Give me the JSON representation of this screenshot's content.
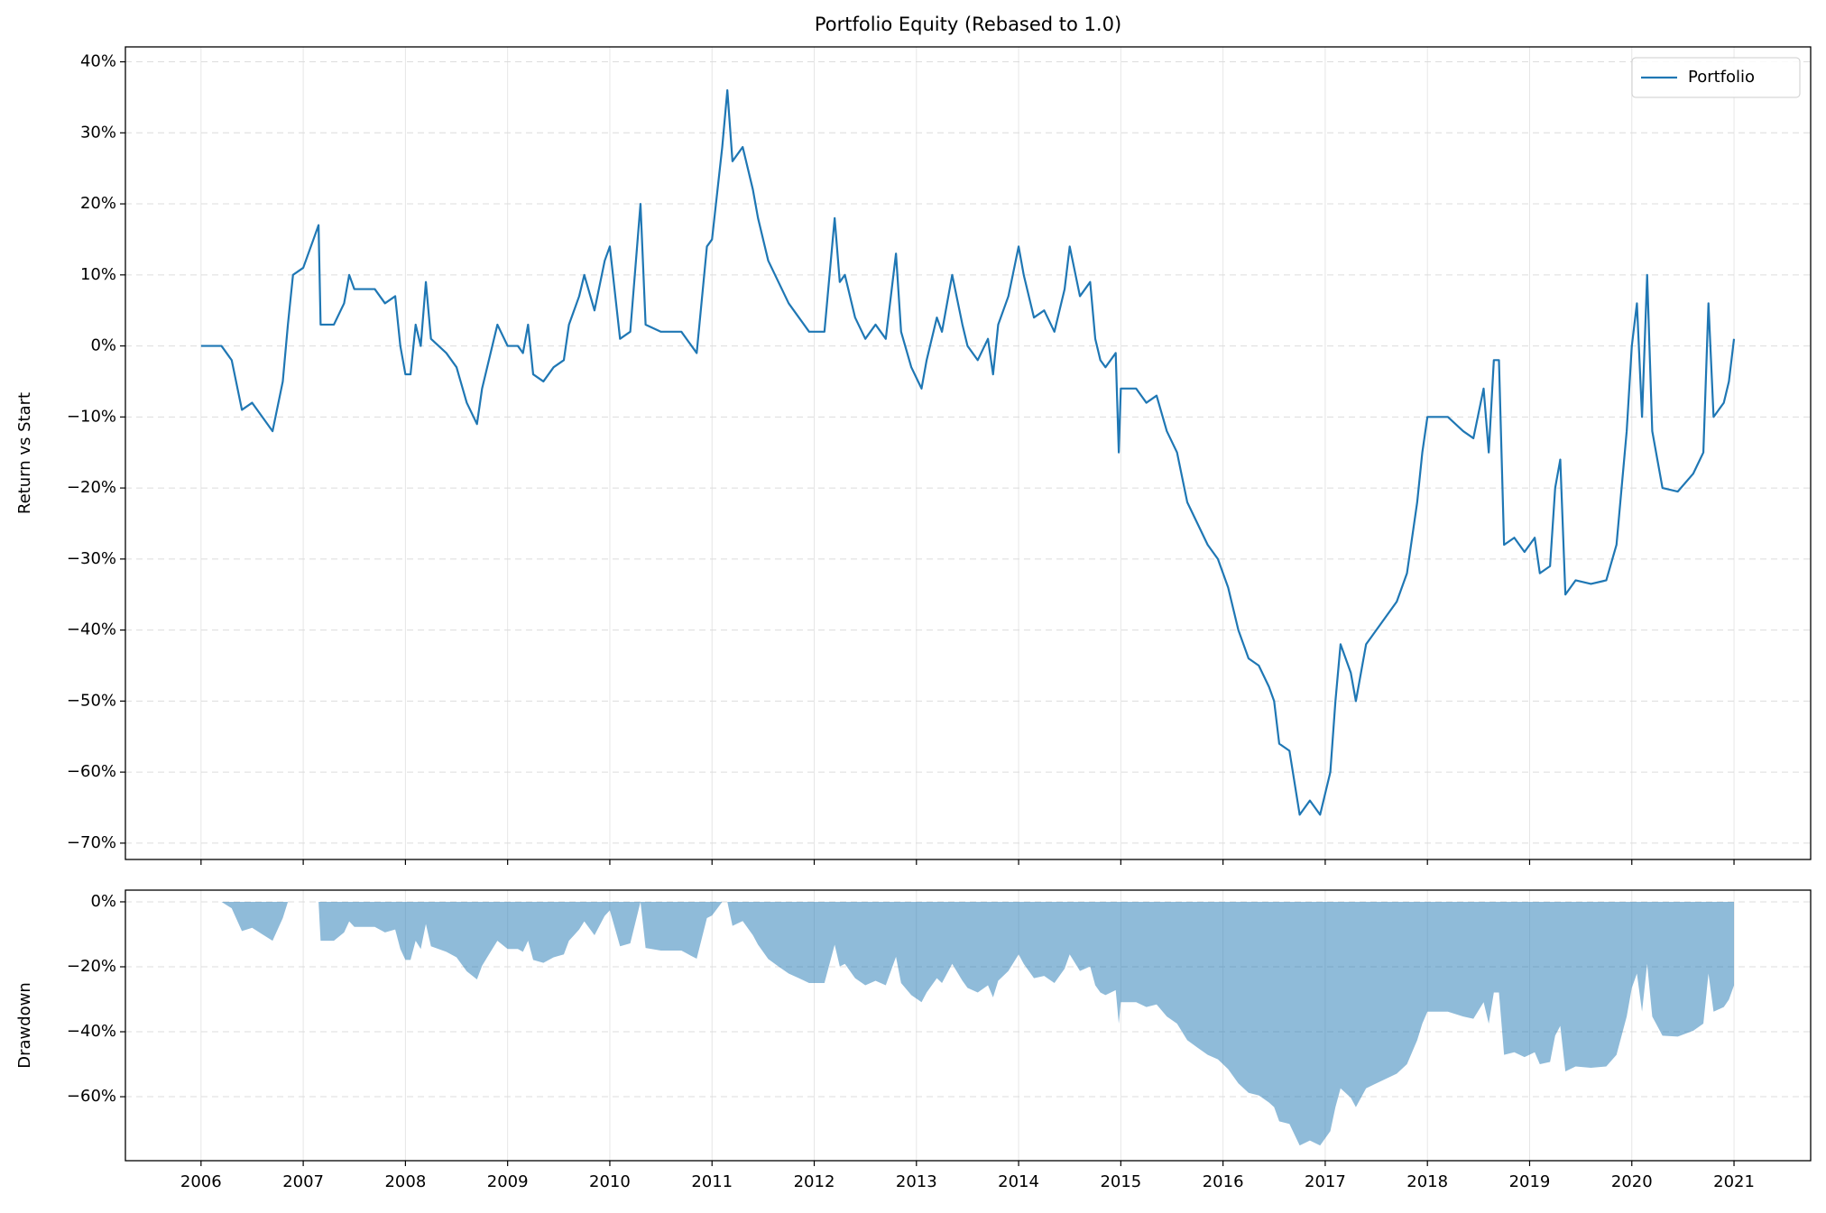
{
  "chart_data": [
    {
      "type": "line",
      "title": "Portfolio Equity (Rebased to 1.0)",
      "y_label": "Return vs Start",
      "x": [
        2006.0,
        2006.2,
        2006.3,
        2006.4,
        2006.5,
        2006.6,
        2006.7,
        2006.8,
        2006.85,
        2006.9,
        2007.0,
        2007.1,
        2007.15,
        2007.17,
        2007.3,
        2007.4,
        2007.45,
        2007.5,
        2007.6,
        2007.7,
        2007.8,
        2007.9,
        2007.95,
        2008.0,
        2008.05,
        2008.1,
        2008.15,
        2008.2,
        2008.25,
        2008.4,
        2008.5,
        2008.6,
        2008.7,
        2008.75,
        2008.8,
        2008.9,
        2009.0,
        2009.1,
        2009.15,
        2009.2,
        2009.25,
        2009.35,
        2009.45,
        2009.55,
        2009.6,
        2009.7,
        2009.75,
        2009.85,
        2009.95,
        2010.0,
        2010.1,
        2010.2,
        2010.3,
        2010.35,
        2010.5,
        2010.7,
        2010.8,
        2010.85,
        2010.95,
        2011.0,
        2011.1,
        2011.15,
        2011.2,
        2011.3,
        2011.4,
        2011.45,
        2011.55,
        2011.65,
        2011.75,
        2011.85,
        2011.95,
        2012.1,
        2012.2,
        2012.25,
        2012.3,
        2012.4,
        2012.5,
        2012.6,
        2012.7,
        2012.8,
        2012.85,
        2012.95,
        2013.05,
        2013.1,
        2013.2,
        2013.25,
        2013.35,
        2013.45,
        2013.5,
        2013.6,
        2013.7,
        2013.75,
        2013.8,
        2013.9,
        2014.0,
        2014.05,
        2014.15,
        2014.25,
        2014.35,
        2014.45,
        2014.5,
        2014.6,
        2014.7,
        2014.75,
        2014.8,
        2014.85,
        2014.95,
        2014.98,
        2015.0,
        2015.15,
        2015.25,
        2015.35,
        2015.45,
        2015.55,
        2015.65,
        2015.75,
        2015.85,
        2015.95,
        2016.05,
        2016.15,
        2016.25,
        2016.35,
        2016.45,
        2016.5,
        2016.55,
        2016.65,
        2016.75,
        2016.85,
        2016.95,
        2017.05,
        2017.1,
        2017.15,
        2017.25,
        2017.3,
        2017.4,
        2017.5,
        2017.6,
        2017.7,
        2017.8,
        2017.9,
        2017.95,
        2018.0,
        2018.2,
        2018.35,
        2018.45,
        2018.55,
        2018.6,
        2018.65,
        2018.7,
        2018.75,
        2018.85,
        2018.95,
        2019.05,
        2019.1,
        2019.2,
        2019.25,
        2019.3,
        2019.35,
        2019.45,
        2019.6,
        2019.75,
        2019.85,
        2019.95,
        2020.0,
        2020.05,
        2020.1,
        2020.15,
        2020.2,
        2020.3,
        2020.45,
        2020.6,
        2020.7,
        2020.75,
        2020.8,
        2020.9,
        2020.95,
        2021.0
      ],
      "series": [
        {
          "name": "Portfolio",
          "color": "#1f77b4",
          "values": [
            0,
            0,
            -2,
            -9,
            -8,
            -10,
            -12,
            -5,
            3,
            10,
            11,
            15,
            17,
            3,
            3,
            6,
            10,
            8,
            8,
            8,
            6,
            7,
            0,
            -4,
            -4,
            3,
            0,
            9,
            1,
            -1,
            -3,
            -8,
            -11,
            -6,
            -3,
            3,
            0,
            0,
            -1,
            3,
            -4,
            -5,
            -3,
            -2,
            3,
            7,
            10,
            5,
            12,
            14,
            1,
            2,
            20,
            3,
            2,
            2,
            0,
            -1,
            14,
            15,
            28,
            36,
            26,
            28,
            22,
            18,
            12,
            9,
            6,
            4,
            2,
            2,
            18,
            9,
            10,
            4,
            1,
            3,
            1,
            13,
            2,
            -3,
            -6,
            -2,
            4,
            2,
            10,
            3,
            0,
            -2,
            1,
            -4,
            3,
            7,
            14,
            10,
            4,
            5,
            2,
            8,
            14,
            7,
            9,
            1,
            -2,
            -3,
            -1,
            -15,
            -6,
            -6,
            -8,
            -7,
            -12,
            -15,
            -22,
            -25,
            -28,
            -30,
            -34,
            -40,
            -44,
            -45,
            -48,
            -50,
            -56,
            -57,
            -66,
            -64,
            -66,
            -60,
            -50,
            -42,
            -46,
            -50,
            -42,
            -40,
            -38,
            -36,
            -32,
            -22,
            -15,
            -10,
            -10,
            -12,
            -13,
            -6,
            -15,
            -2,
            -2,
            -28,
            -27,
            -29,
            -27,
            -32,
            -31,
            -20,
            -16,
            -35,
            -33,
            -33.5,
            -33,
            -28,
            -12,
            0,
            6,
            -10,
            10,
            -12,
            -20,
            -20.5,
            -18,
            -15,
            6,
            -10,
            -8,
            -5,
            1
          ]
        }
      ],
      "xlim": [
        2005.26,
        2021.75
      ],
      "xticks": [
        2006,
        2007,
        2008,
        2009,
        2010,
        2011,
        2012,
        2013,
        2014,
        2015,
        2016,
        2017,
        2018,
        2019,
        2020,
        2021
      ],
      "ylim": [
        -72.3,
        42.1
      ],
      "yticks": [
        {
          "value": -70,
          "label": "−70%"
        },
        {
          "value": -60,
          "label": "−60%"
        },
        {
          "value": -50,
          "label": "−50%"
        },
        {
          "value": -40,
          "label": "−40%"
        },
        {
          "value": -30,
          "label": "−30%"
        },
        {
          "value": -20,
          "label": "−20%"
        },
        {
          "value": -10,
          "label": "−10%"
        },
        {
          "value": 0,
          "label": "0%"
        },
        {
          "value": 10,
          "label": "10%"
        },
        {
          "value": 20,
          "label": "20%"
        },
        {
          "value": 30,
          "label": "30%"
        },
        {
          "value": 40,
          "label": "40%"
        }
      ],
      "grid": true,
      "legend": "upper right"
    },
    {
      "type": "area",
      "y_label": "Drawdown",
      "x": [
        2006.0,
        2006.2,
        2006.3,
        2006.4,
        2006.5,
        2006.6,
        2006.7,
        2006.8,
        2006.85,
        2006.9,
        2007.0,
        2007.1,
        2007.15,
        2007.17,
        2007.3,
        2007.4,
        2007.45,
        2007.5,
        2007.6,
        2007.7,
        2007.8,
        2007.9,
        2007.95,
        2008.0,
        2008.05,
        2008.1,
        2008.15,
        2008.2,
        2008.25,
        2008.4,
        2008.5,
        2008.6,
        2008.7,
        2008.75,
        2008.8,
        2008.9,
        2009.0,
        2009.1,
        2009.15,
        2009.2,
        2009.25,
        2009.35,
        2009.45,
        2009.55,
        2009.6,
        2009.7,
        2009.75,
        2009.85,
        2009.95,
        2010.0,
        2010.1,
        2010.2,
        2010.3,
        2010.35,
        2010.5,
        2010.7,
        2010.8,
        2010.85,
        2010.95,
        2011.0,
        2011.1,
        2011.15,
        2011.2,
        2011.3,
        2011.4,
        2011.45,
        2011.55,
        2011.65,
        2011.75,
        2011.85,
        2011.95,
        2012.1,
        2012.2,
        2012.25,
        2012.3,
        2012.4,
        2012.5,
        2012.6,
        2012.7,
        2012.8,
        2012.85,
        2012.95,
        2013.05,
        2013.1,
        2013.2,
        2013.25,
        2013.35,
        2013.45,
        2013.5,
        2013.6,
        2013.7,
        2013.75,
        2013.8,
        2013.9,
        2014.0,
        2014.05,
        2014.15,
        2014.25,
        2014.35,
        2014.45,
        2014.5,
        2014.6,
        2014.7,
        2014.75,
        2014.8,
        2014.85,
        2014.95,
        2014.98,
        2015.0,
        2015.15,
        2015.25,
        2015.35,
        2015.45,
        2015.55,
        2015.65,
        2015.75,
        2015.85,
        2015.95,
        2016.05,
        2016.15,
        2016.25,
        2016.35,
        2016.45,
        2016.5,
        2016.55,
        2016.65,
        2016.75,
        2016.85,
        2016.95,
        2017.05,
        2017.1,
        2017.15,
        2017.25,
        2017.3,
        2017.4,
        2017.5,
        2017.6,
        2017.7,
        2017.8,
        2017.9,
        2017.95,
        2018.0,
        2018.2,
        2018.35,
        2018.45,
        2018.55,
        2018.6,
        2018.65,
        2018.7,
        2018.75,
        2018.85,
        2018.95,
        2019.05,
        2019.1,
        2019.2,
        2019.25,
        2019.3,
        2019.35,
        2019.45,
        2019.6,
        2019.75,
        2019.85,
        2019.95,
        2020.0,
        2020.05,
        2020.1,
        2020.15,
        2020.2,
        2020.3,
        2020.45,
        2020.6,
        2020.7,
        2020.75,
        2020.8,
        2020.9,
        2020.95,
        2021.0
      ],
      "series": [
        {
          "color": "#1f77b4",
          "opacity": 0.5,
          "values": [
            0,
            0,
            -2,
            -9,
            -8,
            -10,
            -12,
            -5,
            0,
            0,
            0,
            0,
            0,
            -12,
            -12,
            -9.4,
            -6,
            -7.7,
            -7.7,
            -7.7,
            -9.4,
            -8.5,
            -14.5,
            -17.9,
            -17.9,
            -12,
            -14.5,
            -6.8,
            -13.7,
            -15.4,
            -17.1,
            -21.4,
            -23.9,
            -19.7,
            -17.1,
            -12,
            -14.5,
            -14.5,
            -15.4,
            -12,
            -17.9,
            -18.8,
            -17.1,
            -16.2,
            -12,
            -8.5,
            -6,
            -10.3,
            -4.3,
            -2.6,
            -13.7,
            -12.8,
            0,
            -14.2,
            -15,
            -15,
            -16.7,
            -17.5,
            -5,
            -4.2,
            0,
            0,
            -7.4,
            -5.9,
            -10.3,
            -13.2,
            -17.6,
            -19.9,
            -22.1,
            -23.5,
            -25,
            -25,
            -13.2,
            -19.9,
            -19.1,
            -23.5,
            -25.7,
            -24.3,
            -25.7,
            -16.9,
            -25,
            -28.7,
            -30.9,
            -27.9,
            -23.5,
            -25,
            -19.1,
            -24.3,
            -26.5,
            -27.9,
            -25.7,
            -29.4,
            -24.3,
            -21.3,
            -16.2,
            -19.1,
            -23.5,
            -22.8,
            -25,
            -20.6,
            -16.2,
            -21.3,
            -19.9,
            -25.7,
            -27.9,
            -28.7,
            -27.2,
            -37.5,
            -30.9,
            -30.9,
            -32.4,
            -31.6,
            -35.3,
            -37.5,
            -42.6,
            -44.9,
            -47.1,
            -48.5,
            -51.5,
            -55.9,
            -58.8,
            -59.6,
            -61.8,
            -63.2,
            -67.6,
            -68.4,
            -75,
            -73.5,
            -75,
            -70.6,
            -63.2,
            -57.4,
            -60.3,
            -63.2,
            -57.4,
            -55.9,
            -54.4,
            -52.9,
            -50,
            -42.6,
            -37.5,
            -33.8,
            -33.8,
            -35.3,
            -36,
            -30.9,
            -37.5,
            -27.9,
            -27.9,
            -47.1,
            -46.3,
            -47.8,
            -46.3,
            -50,
            -49.3,
            -41.2,
            -38.2,
            -52.2,
            -50.7,
            -51.1,
            -50.7,
            -47.1,
            -35.3,
            -26.5,
            -22.1,
            -33.8,
            -19.1,
            -35.3,
            -41.2,
            -41.5,
            -39.7,
            -37.5,
            -22.1,
            -33.8,
            -32.4,
            -30.1,
            -25.7
          ]
        }
      ],
      "xlim": [
        2005.26,
        2021.75
      ],
      "xticks": [
        2006,
        2007,
        2008,
        2009,
        2010,
        2011,
        2012,
        2013,
        2014,
        2015,
        2016,
        2017,
        2018,
        2019,
        2020,
        2021
      ],
      "ylim": [
        -79.7,
        3.6
      ],
      "yticks": [
        {
          "value": -60,
          "label": "−60%"
        },
        {
          "value": -40,
          "label": "−40%"
        },
        {
          "value": -20,
          "label": "−20%"
        },
        {
          "value": 0,
          "label": "0%"
        }
      ],
      "grid": true
    }
  ]
}
